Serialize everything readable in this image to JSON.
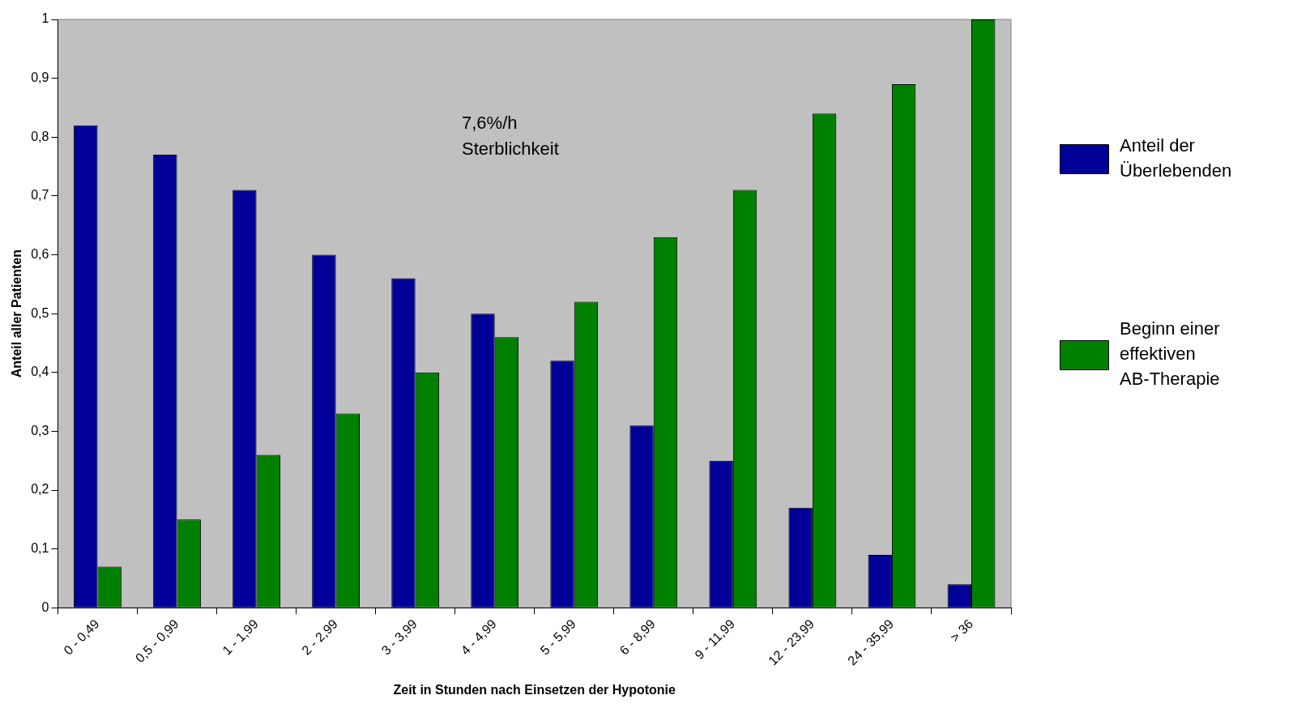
{
  "chart_data": {
    "type": "bar",
    "xlabel": "Zeit in Stunden nach Einsetzen der Hypotonie",
    "ylabel": "Anteil aller Patienten",
    "categories": [
      "0 - 0,49",
      "0,5 - 0,99",
      "1 - 1,99",
      "2 - 2,99",
      "3 - 3,99",
      "4 - 4,99",
      "5 - 5,99",
      "6 - 8,99",
      "9 - 11,99",
      "12 - 23,99",
      "24 - 35,99",
      "> 36"
    ],
    "series": [
      {
        "name": "Anteil der Überlebenden",
        "color": "#000099",
        "values": [
          0.82,
          0.77,
          0.71,
          0.6,
          0.56,
          0.5,
          0.42,
          0.31,
          0.25,
          0.17,
          0.09,
          0.04
        ]
      },
      {
        "name": "Beginn einer effektiven AB-Therapie",
        "color": "#008000",
        "values": [
          0.07,
          0.15,
          0.26,
          0.33,
          0.4,
          0.46,
          0.52,
          0.63,
          0.71,
          0.84,
          0.89,
          1
        ]
      }
    ],
    "ylim": [
      0,
      1
    ],
    "yticks": [
      0,
      {
        "value": 0.1,
        "label": "0,1"
      },
      {
        "value": 0.2,
        "label": "0,2"
      },
      {
        "value": 0.3,
        "label": "0,3"
      },
      {
        "value": 0.4,
        "label": "0,4"
      },
      {
        "value": 0.5,
        "label": "0,5"
      },
      {
        "value": 0.6,
        "label": "0,6"
      },
      {
        "value": 0.7,
        "label": "0,7"
      },
      {
        "value": 0.8,
        "label": "0,8"
      },
      {
        "value": 0.9,
        "label": "0,9"
      },
      1
    ],
    "annotations": [
      "7,6%/h Sterblichkeit"
    ],
    "grid": false,
    "legend": "right"
  }
}
